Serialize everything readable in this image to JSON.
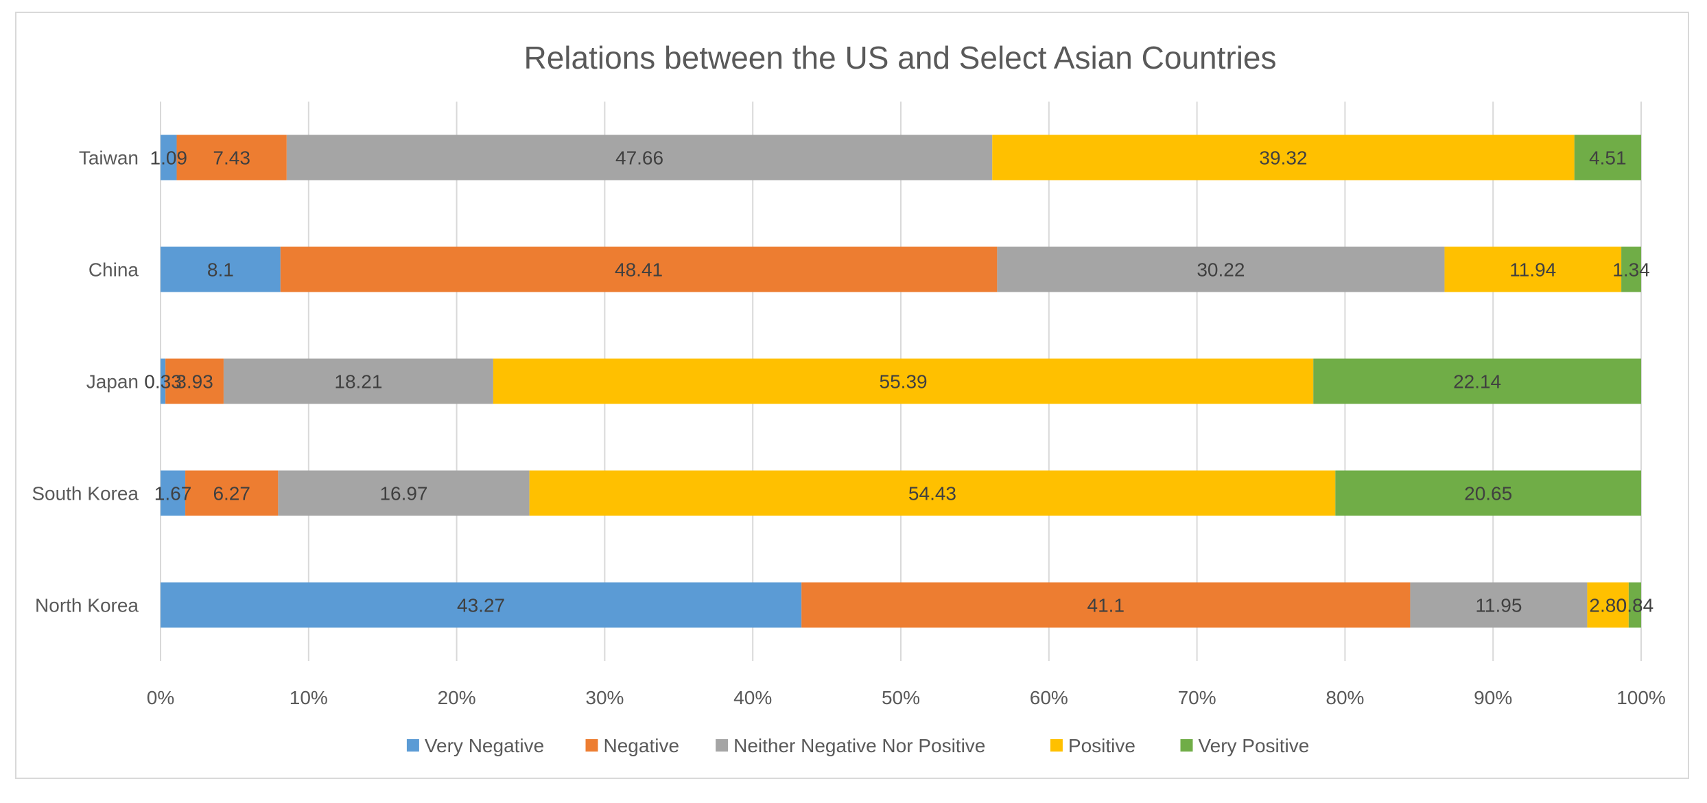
{
  "chart_data": {
    "type": "bar",
    "orientation": "horizontal",
    "stacking": "percent",
    "title": "Relations between the US and Select Asian Countries",
    "categories": [
      "North Korea",
      "South Korea",
      "Japan",
      "China",
      "Taiwan"
    ],
    "series": [
      {
        "name": "Very Negative",
        "color": "#5b9bd5",
        "values": [
          43.27,
          1.67,
          0.33,
          8.1,
          1.09
        ]
      },
      {
        "name": "Negative",
        "color": "#ed7d31",
        "values": [
          41.1,
          6.27,
          3.93,
          48.41,
          7.43
        ]
      },
      {
        "name": "Neither Negative Nor Positive",
        "color": "#a5a5a5",
        "values": [
          11.95,
          16.97,
          18.21,
          30.22,
          47.66
        ]
      },
      {
        "name": "Positive",
        "color": "#ffc000",
        "values": [
          2.8,
          54.43,
          55.39,
          11.94,
          39.32
        ]
      },
      {
        "name": "Very Positive",
        "color": "#70ad47",
        "values": [
          0.84,
          20.65,
          22.14,
          1.34,
          4.51
        ]
      }
    ],
    "data_labels": [
      [
        "43.27",
        "1.67",
        "0.33",
        "8.1",
        "1.09"
      ],
      [
        "41.1",
        "6.27",
        "3.93",
        "48.41",
        "7.43"
      ],
      [
        "11.95",
        "16.97",
        "18.21",
        "30.22",
        "47.66"
      ],
      [
        "2.80",
        "54.43",
        "55.39",
        "11.94",
        "39.32"
      ],
      [
        "0.84",
        "20.65",
        "22.14",
        "1.34",
        "4.51"
      ]
    ],
    "x_ticks": [
      "0%",
      "10%",
      "20%",
      "30%",
      "40%",
      "50%",
      "60%",
      "70%",
      "80%",
      "90%",
      "100%"
    ],
    "xlim": [
      0,
      100
    ],
    "grid": "vertical",
    "legend_position": "bottom"
  }
}
